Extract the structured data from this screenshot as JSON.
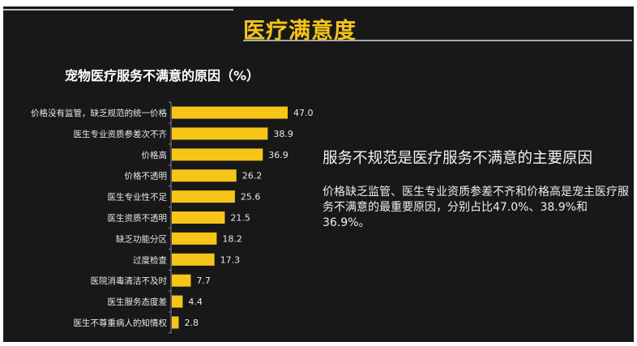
{
  "slide": {
    "title": "医疗满意度",
    "headline": "服务不规范是医疗服务不满意的主要原因",
    "paragraph": "价格缺乏监管、医生专业资质参差不齐和价格高是宠主医疗服务不满意的最重要原因，分别占比47.0%、38.9%和36.9%。"
  },
  "chart_data": {
    "type": "bar",
    "orientation": "horizontal",
    "title": "宠物医疗服务不满意的原因（%）",
    "categories": [
      "价格没有监管，缺乏规范的统一价格",
      "医生专业资质参差次不齐",
      "价格高",
      "价格不透明",
      "医生专业性不足",
      "医生资质不透明",
      "缺乏功能分区",
      "过度检查",
      "医院消毒清洁不及时",
      "医生服务态度差",
      "医生不尊重病人的知情权"
    ],
    "values": [
      47.0,
      38.9,
      36.9,
      26.2,
      25.6,
      21.5,
      18.2,
      17.3,
      7.7,
      4.4,
      2.8
    ],
    "value_labels": [
      "47.0",
      "38.9",
      "36.9",
      "26.2",
      "25.6",
      "21.5",
      "18.2",
      "17.3",
      "7.7",
      "4.4",
      "2.8"
    ],
    "xlim": [
      0,
      47
    ],
    "grid": false,
    "bar_color": "#f5c518",
    "background": "#181818"
  }
}
